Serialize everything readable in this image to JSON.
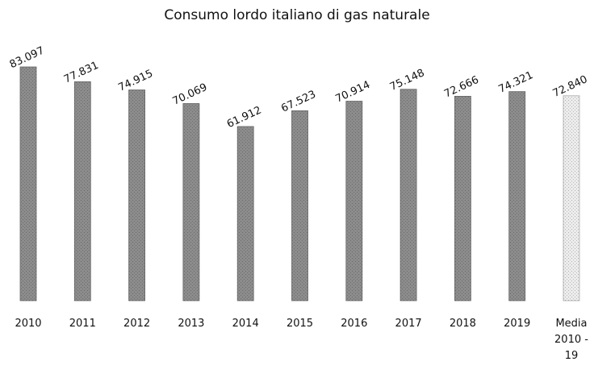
{
  "chart_data": {
    "type": "bar",
    "title": "Consumo lordo italiano di gas naturale",
    "categories": [
      "2010",
      "2011",
      "2012",
      "2013",
      "2014",
      "2015",
      "2016",
      "2017",
      "2018",
      "2019",
      "Media 2010 - 19"
    ],
    "values": [
      83097,
      77831,
      74915,
      70069,
      61912,
      67523,
      70914,
      75148,
      72666,
      74321,
      72840
    ],
    "value_labels": [
      "83.097",
      "77.831",
      "74.915",
      "70.069",
      "61.912",
      "67.523",
      "70.914",
      "75.148",
      "72.666",
      "74.321",
      "72.840"
    ],
    "colors": [
      "#8c8c8c",
      "#8c8c8c",
      "#8c8c8c",
      "#8c8c8c",
      "#8c8c8c",
      "#8c8c8c",
      "#8c8c8c",
      "#8c8c8c",
      "#8c8c8c",
      "#8c8c8c",
      "#ececec"
    ]
  }
}
